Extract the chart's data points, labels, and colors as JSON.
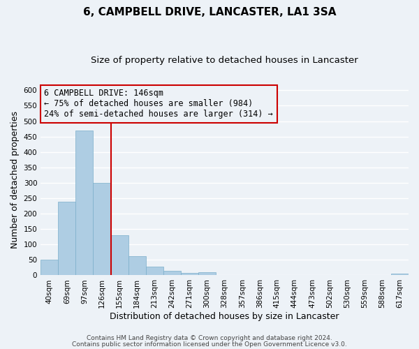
{
  "title": "6, CAMPBELL DRIVE, LANCASTER, LA1 3SA",
  "subtitle": "Size of property relative to detached houses in Lancaster",
  "xlabel": "Distribution of detached houses by size in Lancaster",
  "ylabel": "Number of detached properties",
  "bin_labels": [
    "40sqm",
    "69sqm",
    "97sqm",
    "126sqm",
    "155sqm",
    "184sqm",
    "213sqm",
    "242sqm",
    "271sqm",
    "300sqm",
    "328sqm",
    "357sqm",
    "386sqm",
    "415sqm",
    "444sqm",
    "473sqm",
    "502sqm",
    "530sqm",
    "559sqm",
    "588sqm",
    "617sqm"
  ],
  "bar_values": [
    50,
    238,
    470,
    300,
    130,
    62,
    28,
    15,
    7,
    10,
    0,
    0,
    0,
    0,
    0,
    0,
    0,
    0,
    0,
    0,
    5
  ],
  "bar_color": "#aecde3",
  "bar_edgecolor": "#7aaeca",
  "vline_color": "#cc0000",
  "annotation_box_text": "6 CAMPBELL DRIVE: 146sqm\n← 75% of detached houses are smaller (984)\n24% of semi-detached houses are larger (314) →",
  "annotation_box_edgecolor": "#cc0000",
  "ylim": [
    0,
    620
  ],
  "yticks": [
    0,
    50,
    100,
    150,
    200,
    250,
    300,
    350,
    400,
    450,
    500,
    550,
    600
  ],
  "footer_line1": "Contains HM Land Registry data © Crown copyright and database right 2024.",
  "footer_line2": "Contains public sector information licensed under the Open Government Licence v3.0.",
  "background_color": "#edf2f7",
  "grid_color": "#ffffff",
  "title_fontsize": 11,
  "subtitle_fontsize": 9.5,
  "axis_label_fontsize": 9,
  "tick_fontsize": 7.5,
  "annotation_fontsize": 8.5,
  "footer_fontsize": 6.5
}
